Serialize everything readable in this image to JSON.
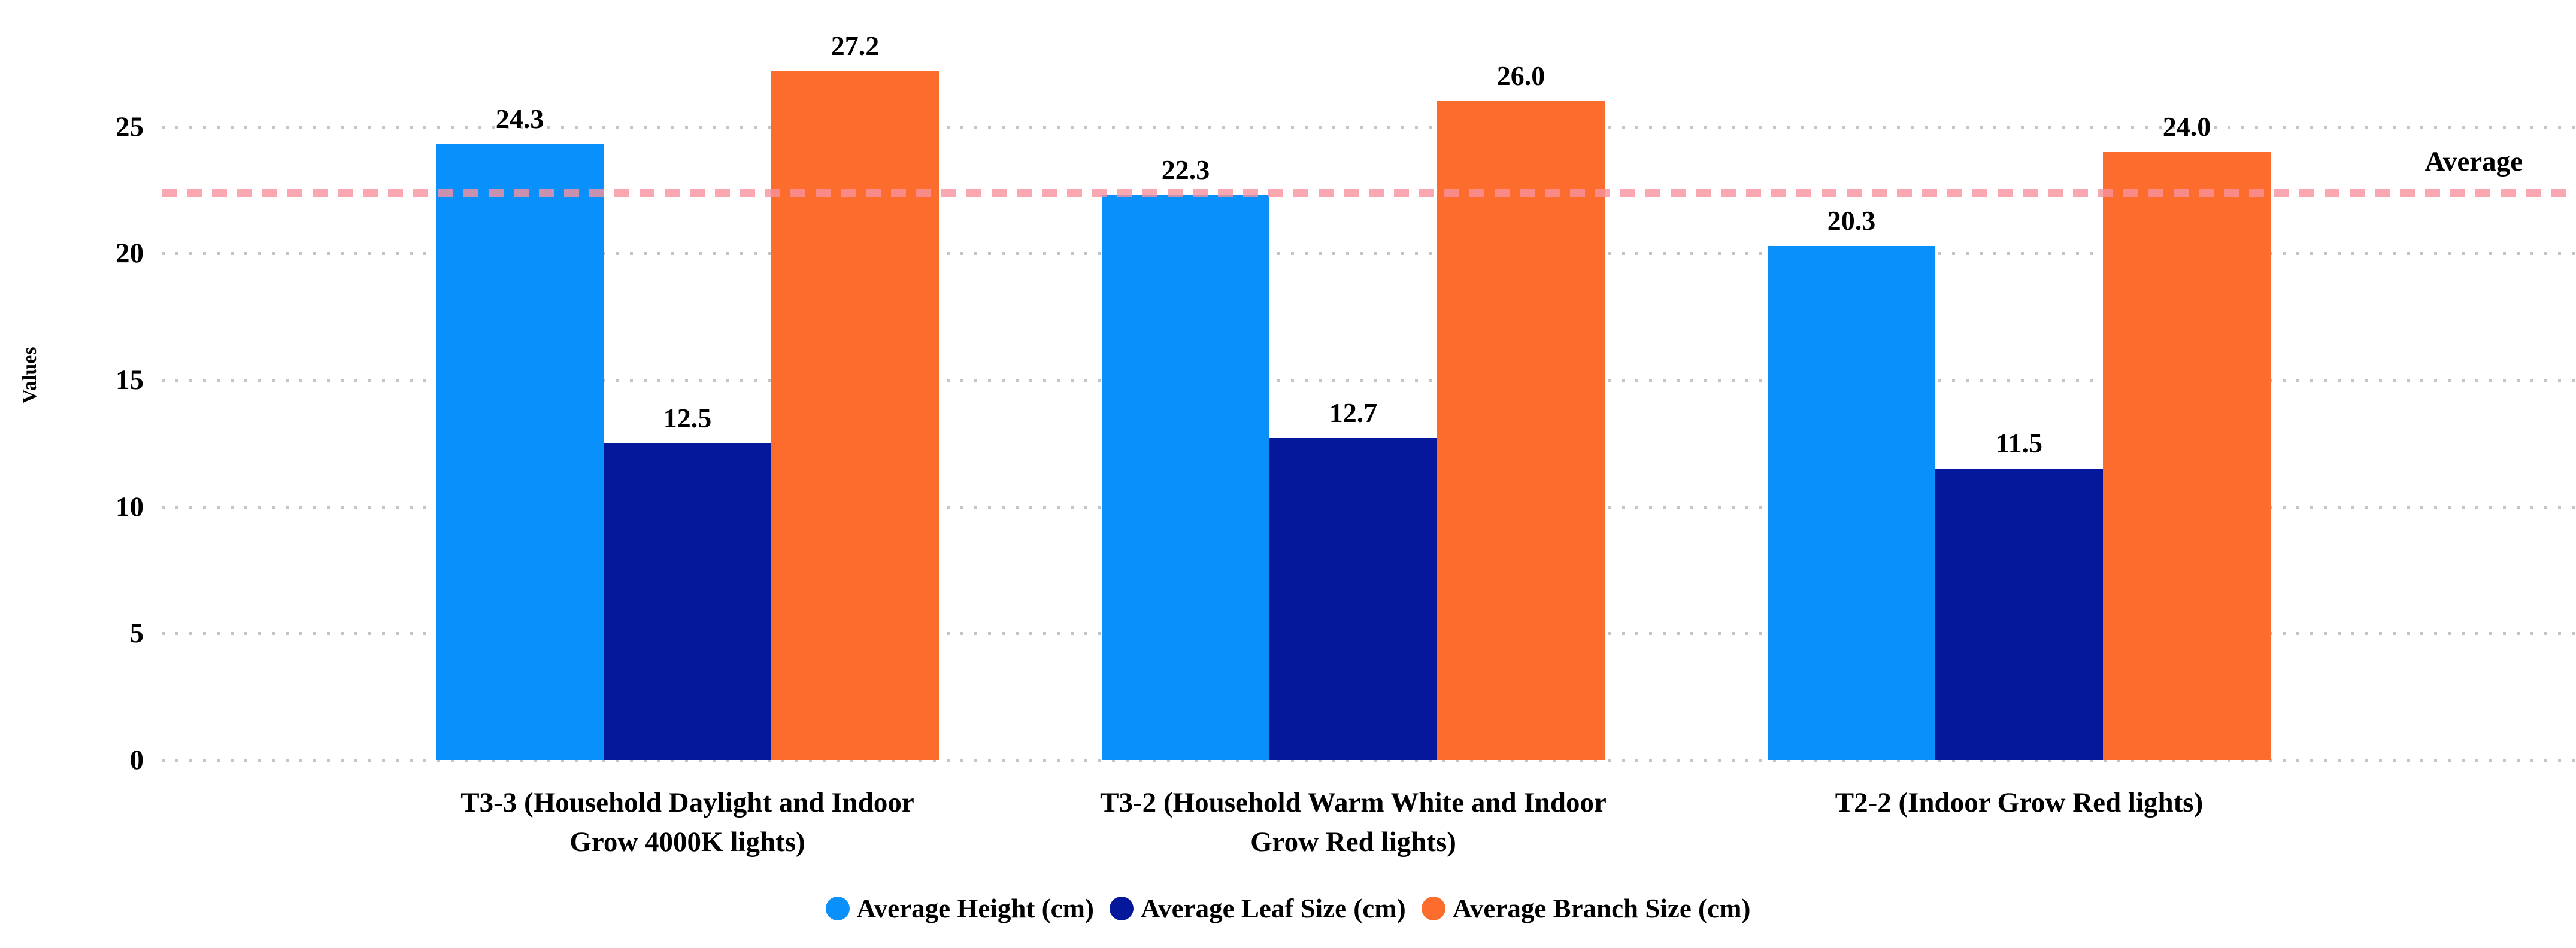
{
  "chart_data": {
    "type": "bar",
    "title": "",
    "ylabel": "Values",
    "categories": [
      [
        "T3-3 (Household Daylight and Indoor",
        "Grow 4000K lights)"
      ],
      [
        "T3-2 (Household Warm White and Indoor",
        "Grow Red lights)"
      ],
      [
        "T2-2 (Indoor Grow Red lights)"
      ]
    ],
    "series": [
      {
        "name": "Average Height (cm)",
        "color": "#0990FA",
        "values": [
          24.3,
          22.3,
          20.3
        ]
      },
      {
        "name": "Average Leaf Size (cm)",
        "color": "#05189B",
        "values": [
          12.5,
          12.7,
          11.5
        ]
      },
      {
        "name": "Average Branch Size (cm)",
        "color": "#FC6C2D",
        "values": [
          27.2,
          26.0,
          24.0
        ]
      }
    ],
    "y_ticks": [
      0,
      5,
      10,
      15,
      20,
      25
    ],
    "ylim": [
      0,
      28.5
    ],
    "grid": "horizontal-dotted",
    "gridline_color": "#C5C5C5",
    "legend_position": "bottom",
    "value_label_decimals": 1,
    "average_line": {
      "label": "Average",
      "value": 22.4,
      "color": "#F8919E",
      "style": "dashed"
    }
  }
}
